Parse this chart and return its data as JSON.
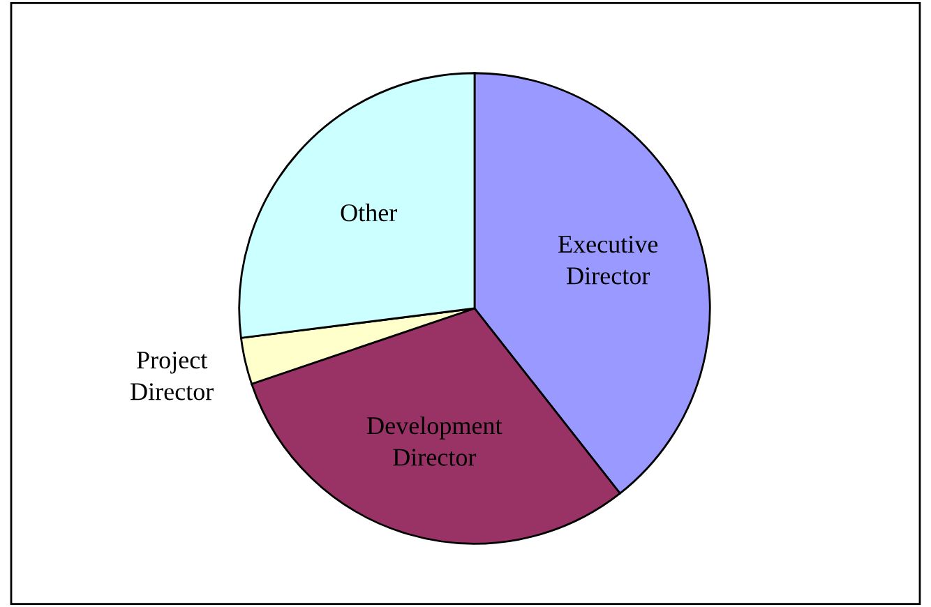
{
  "chart_data": {
    "type": "pie",
    "categories": [
      "Executive\nDirector",
      "Development\nDirector",
      "Project\nDirector",
      "Other"
    ],
    "values": [
      39.4,
      30.4,
      3.2,
      27.0
    ],
    "colors": [
      "#9999ff",
      "#993366",
      "#ffffcc",
      "#ccffff"
    ]
  }
}
